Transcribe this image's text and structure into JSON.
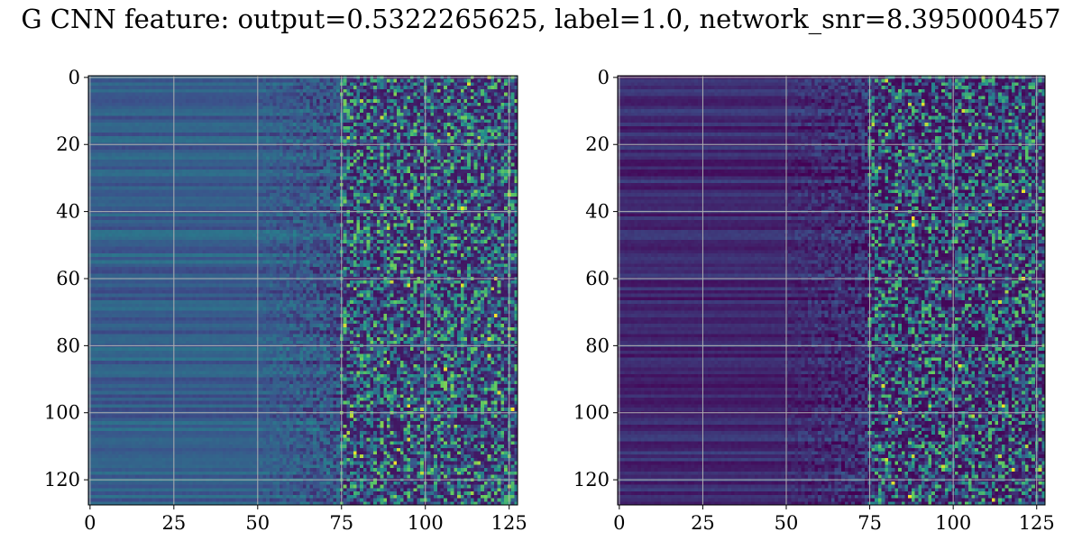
{
  "title": "G CNN feature: output=0.5322265625, label=1.0, network_snr=8.395000457",
  "colormap": "viridis",
  "colors": {
    "viridis_stops": [
      "#440154",
      "#3b528b",
      "#21918c",
      "#5ec962",
      "#fde725"
    ],
    "grid": "#b0b0b0",
    "frame": "#000000"
  },
  "chart_data": [
    {
      "type": "heatmap",
      "title": "",
      "xlabel": "",
      "ylabel": "",
      "rows": 128,
      "cols": 128,
      "xlim": [
        0,
        127
      ],
      "ylim": [
        127,
        0
      ],
      "x_ticks": [
        0,
        25,
        50,
        75,
        100,
        125
      ],
      "y_ticks": [
        0,
        20,
        40,
        60,
        80,
        100,
        120
      ],
      "x_tick_labels": [
        "0",
        "25",
        "50",
        "75",
        "100",
        "125"
      ],
      "y_tick_labels": [
        "0",
        "20",
        "40",
        "60",
        "80",
        "100",
        "120"
      ],
      "grid": true,
      "noise_onset_col": 75
    },
    {
      "type": "heatmap",
      "title": "",
      "xlabel": "",
      "ylabel": "",
      "rows": 128,
      "cols": 128,
      "xlim": [
        0,
        127
      ],
      "ylim": [
        127,
        0
      ],
      "x_ticks": [
        0,
        25,
        50,
        75,
        100,
        125
      ],
      "y_ticks": [
        0,
        20,
        40,
        60,
        80,
        100,
        120
      ],
      "x_tick_labels": [
        "0",
        "25",
        "50",
        "75",
        "100",
        "125"
      ],
      "y_tick_labels": [
        "0",
        "20",
        "40",
        "60",
        "80",
        "100",
        "120"
      ],
      "grid": true,
      "noise_onset_col": 75
    }
  ]
}
